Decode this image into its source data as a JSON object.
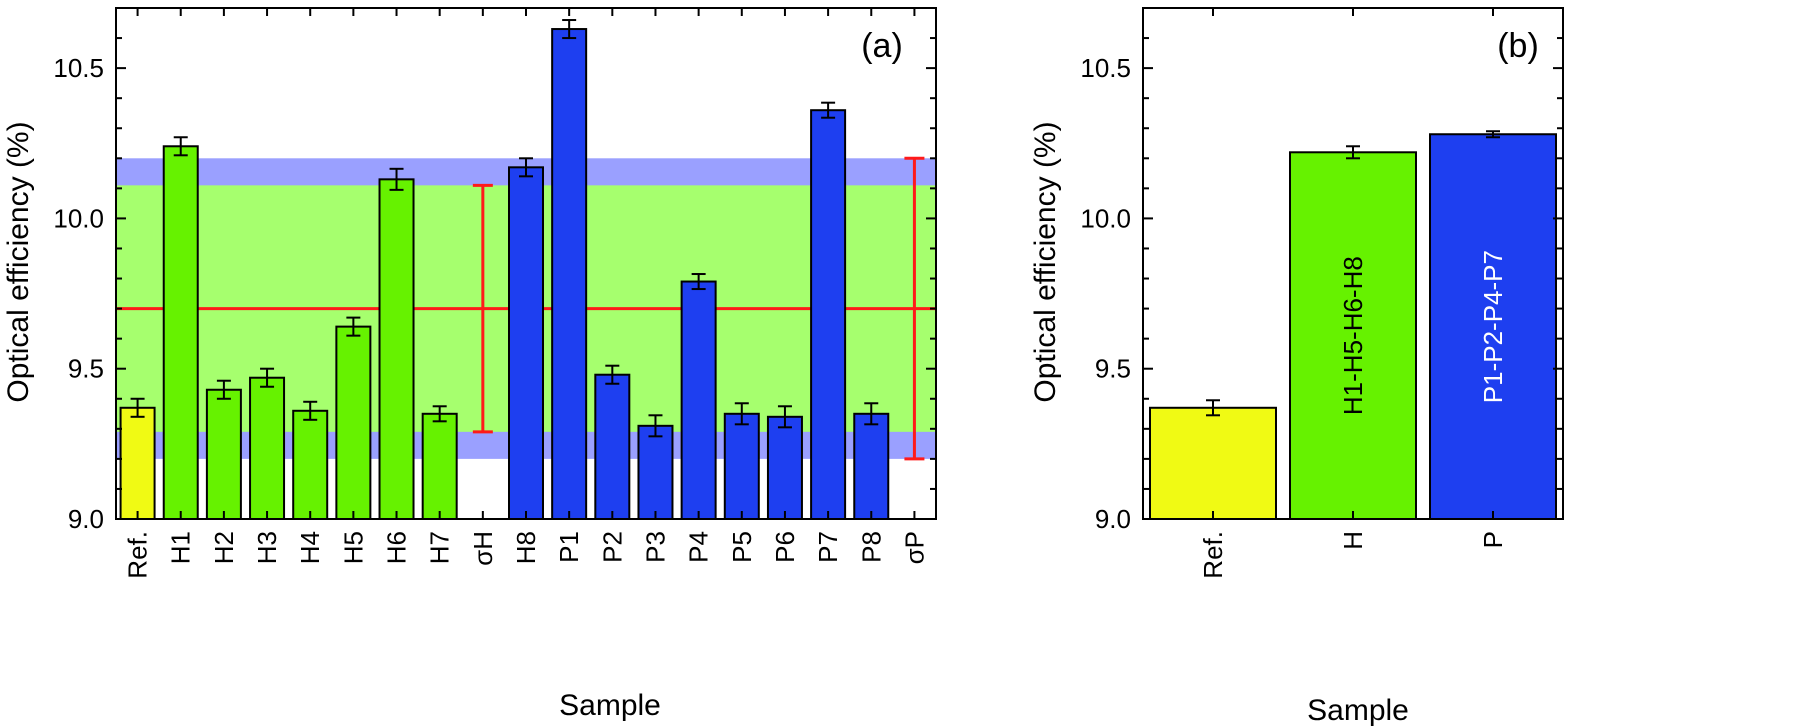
{
  "colors": {
    "ref": "#f0fa14",
    "H": "#66f200",
    "P": "#1e3ff0",
    "band_sigma_h": "#a6ff6e",
    "band_sigma_p": "#9aa0ff",
    "mean_line": "#ff1a1a",
    "sigma_bar": "#ff1a1a",
    "axis": "#000000"
  },
  "chart_data": [
    {
      "type": "bar",
      "panel_label": "(a)",
      "xlabel": "Sample",
      "ylabel": "Optical efficiency (%)",
      "ylim": [
        9.0,
        10.7
      ],
      "yticks": [
        "9.0",
        "9.5",
        "10.0",
        "10.5"
      ],
      "categories": [
        "Ref.",
        "H1",
        "H2",
        "H3",
        "H4",
        "H5",
        "H6",
        "H7",
        "σH",
        "H8",
        "P1",
        "P2",
        "P3",
        "P4",
        "P5",
        "P6",
        "P7",
        "P8",
        "σP"
      ],
      "bars": [
        {
          "category": "Ref.",
          "value": 9.37,
          "error": 0.03,
          "group": "ref"
        },
        {
          "category": "H1",
          "value": 10.24,
          "error": 0.03,
          "group": "H"
        },
        {
          "category": "H2",
          "value": 9.43,
          "error": 0.03,
          "group": "H"
        },
        {
          "category": "H3",
          "value": 9.47,
          "error": 0.03,
          "group": "H"
        },
        {
          "category": "H4",
          "value": 9.36,
          "error": 0.03,
          "group": "H"
        },
        {
          "category": "H5",
          "value": 9.64,
          "error": 0.03,
          "group": "H"
        },
        {
          "category": "H6",
          "value": 10.13,
          "error": 0.035,
          "group": "H"
        },
        {
          "category": "H7",
          "value": 9.35,
          "error": 0.025,
          "group": "H"
        },
        {
          "category": "H8",
          "value": 10.17,
          "error": 0.03,
          "group": "P"
        },
        {
          "category": "P1",
          "value": 10.63,
          "error": 0.03,
          "group": "P"
        },
        {
          "category": "P2",
          "value": 9.48,
          "error": 0.03,
          "group": "P"
        },
        {
          "category": "P3",
          "value": 9.31,
          "error": 0.035,
          "group": "P"
        },
        {
          "category": "P4",
          "value": 9.79,
          "error": 0.025,
          "group": "P"
        },
        {
          "category": "P5",
          "value": 9.35,
          "error": 0.035,
          "group": "P"
        },
        {
          "category": "P6",
          "value": 9.34,
          "error": 0.035,
          "group": "P"
        },
        {
          "category": "P7",
          "value": 10.36,
          "error": 0.025,
          "group": "P"
        },
        {
          "category": "P8",
          "value": 9.35,
          "error": 0.035,
          "group": "P"
        }
      ],
      "mean": 9.7,
      "sigma_H": {
        "category": "σH",
        "low": 9.29,
        "high": 10.11
      },
      "sigma_P": {
        "category": "σP",
        "low": 9.2,
        "high": 10.2
      }
    },
    {
      "type": "bar",
      "panel_label": "(b)",
      "xlabel": "Sample",
      "ylabel": "Optical efficiency (%)",
      "ylim": [
        9.0,
        10.7
      ],
      "yticks": [
        "9.0",
        "9.5",
        "10.0",
        "10.5"
      ],
      "categories": [
        "Ref.",
        "H",
        "P"
      ],
      "bars": [
        {
          "category": "Ref.",
          "value": 9.37,
          "error": 0.025,
          "group": "ref",
          "label": ""
        },
        {
          "category": "H",
          "value": 10.22,
          "error": 0.02,
          "group": "H",
          "label": "H1-H5-H6-H8"
        },
        {
          "category": "P",
          "value": 10.28,
          "error": 0.01,
          "group": "P",
          "label": "P1-P2-P4-P7"
        }
      ]
    }
  ]
}
